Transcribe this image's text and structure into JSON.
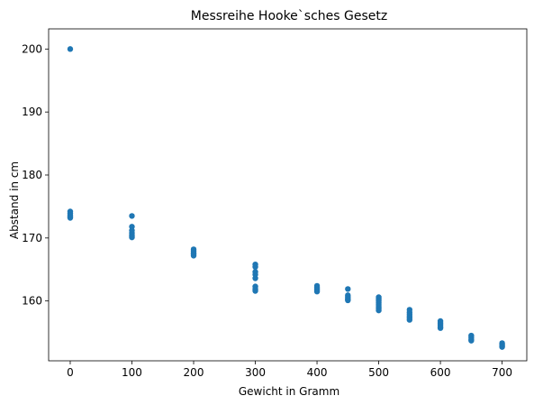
{
  "chart_data": {
    "type": "scatter",
    "title": "Messreihe Hooke`sches Gesetz",
    "xlabel": "Gewicht in Gramm",
    "ylabel": "Abstand in cm",
    "xlim": [
      -35,
      740
    ],
    "ylim": [
      150.5,
      203.2
    ],
    "xticks": [
      0,
      100,
      200,
      300,
      400,
      500,
      600,
      700
    ],
    "yticks": [
      160,
      170,
      180,
      190,
      200
    ],
    "grid": false,
    "legend": "none",
    "color": "#1f77b4",
    "series": [
      {
        "x": [
          0,
          0,
          0,
          0,
          0,
          0,
          100,
          100,
          100,
          100,
          100,
          100,
          100,
          200,
          200,
          200,
          200,
          200,
          300,
          300,
          300,
          300,
          300,
          300,
          300,
          300,
          400,
          400,
          400,
          400,
          400,
          450,
          450,
          450,
          450,
          450,
          500,
          500,
          500,
          500,
          500,
          500,
          500,
          500,
          550,
          550,
          550,
          550,
          550,
          550,
          600,
          600,
          600,
          600,
          600,
          650,
          650,
          650,
          650,
          700,
          700,
          700,
          700
        ],
        "y": [
          200.0,
          174.2,
          173.9,
          173.6,
          173.4,
          173.2,
          173.5,
          171.8,
          171.2,
          170.8,
          170.5,
          170.3,
          170.1,
          168.2,
          167.9,
          167.6,
          167.4,
          167.2,
          165.8,
          165.4,
          164.6,
          164.2,
          163.6,
          162.3,
          161.9,
          161.6,
          162.4,
          162.1,
          161.9,
          161.7,
          161.5,
          161.9,
          160.9,
          160.6,
          160.3,
          160.1,
          160.6,
          160.3,
          160.0,
          159.7,
          159.4,
          159.1,
          158.8,
          158.5,
          158.6,
          158.2,
          157.9,
          157.6,
          157.3,
          157.0,
          156.8,
          156.5,
          156.2,
          155.9,
          155.7,
          154.5,
          154.2,
          153.9,
          153.7,
          153.3,
          153.1,
          152.9,
          152.7
        ]
      }
    ]
  }
}
